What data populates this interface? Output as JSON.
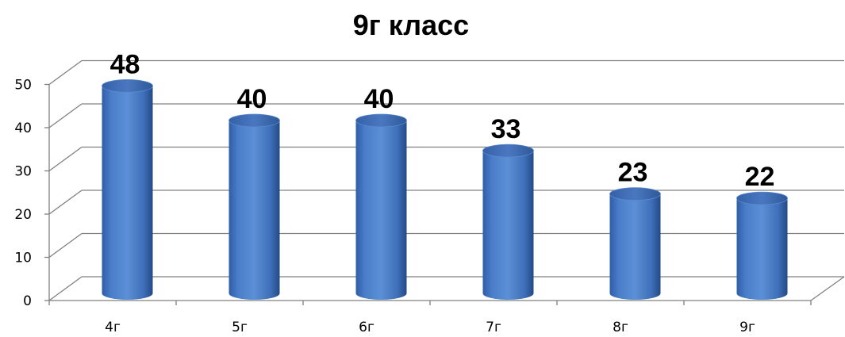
{
  "chart_data": {
    "type": "bar",
    "style": "3d-cylinder",
    "title": "9г класс",
    "xlabel": "",
    "ylabel": "",
    "categories": [
      "4г",
      "5г",
      "6г",
      "7г",
      "8г",
      "9г"
    ],
    "values": [
      48,
      40,
      40,
      33,
      23,
      22
    ],
    "ylim": [
      0,
      50
    ],
    "yticks": [
      0,
      10,
      20,
      30,
      40,
      50
    ],
    "grid": true,
    "legend": "none",
    "data_labels": true,
    "colors": {
      "bar": "#4a7ec8",
      "bar_dark": "#2a5596",
      "bar_light": "#7fa8e0",
      "grid": "#808080"
    }
  }
}
